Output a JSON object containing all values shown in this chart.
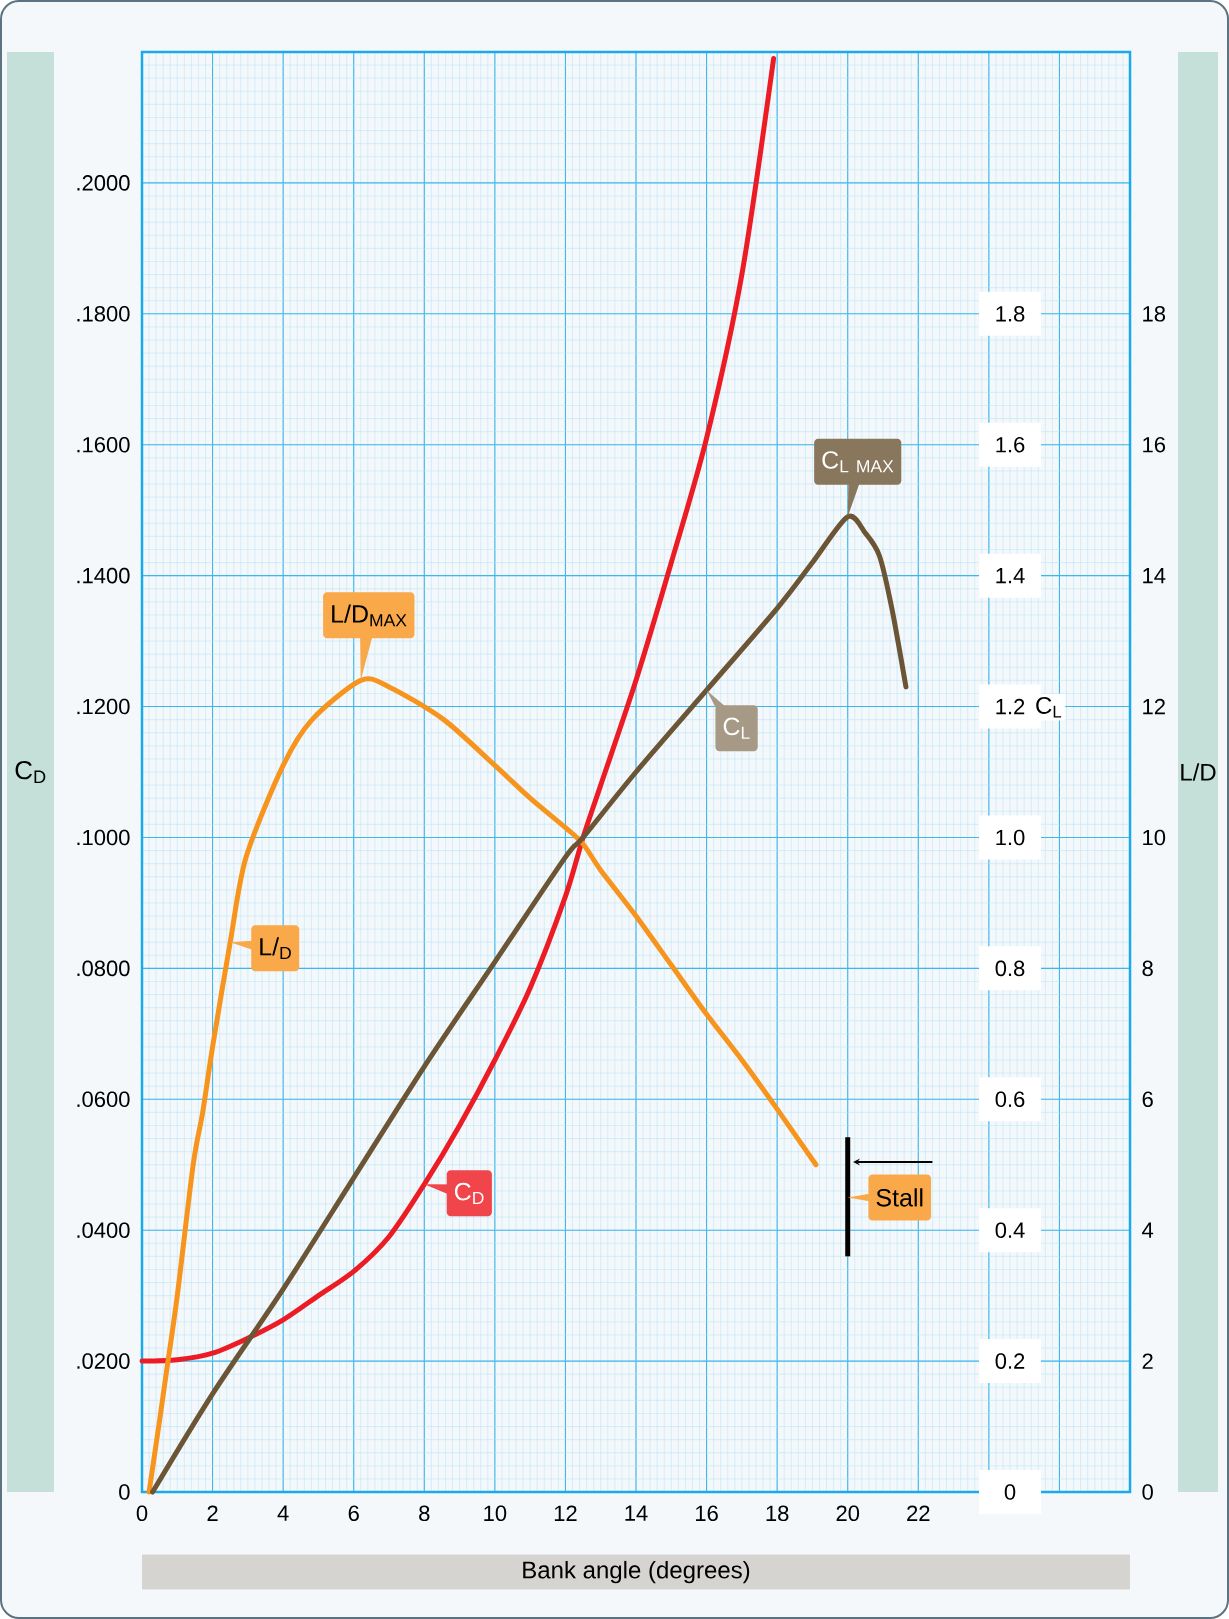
{
  "chart_data": {
    "type": "line",
    "xlabel": "Bank angle (degrees)",
    "ylabel": "C$_{D}$",
    "y2label": "L/D",
    "y3label": "C$_{L}$",
    "xlim": [
      0,
      28
    ],
    "ylim": [
      0,
      0.22
    ],
    "y2lim": [
      0,
      22
    ],
    "y3lim": [
      0,
      2.2
    ],
    "xticks": [
      0,
      2,
      4,
      6,
      8,
      10,
      12,
      14,
      16,
      18,
      20,
      22,
      {
        "value": 24,
        "label": null
      },
      {
        "value": 26,
        "label": null
      }
    ],
    "yticks": [
      0,
      {
        "value": 0.02,
        "label": ".0200"
      },
      {
        "value": 0.04,
        "label": ".0400"
      },
      {
        "value": 0.06,
        "label": ".0600"
      },
      {
        "value": 0.08,
        "label": ".0800"
      },
      {
        "value": 0.1,
        "label": ".1000"
      },
      {
        "value": 0.12,
        "label": ".1200"
      },
      {
        "value": 0.14,
        "label": ".1400"
      },
      {
        "value": 0.16,
        "label": ".1600"
      },
      {
        "value": 0.18,
        "label": ".1800"
      },
      {
        "value": 0.2,
        "label": ".2000"
      }
    ],
    "y2ticks": [
      0,
      2,
      4,
      6,
      8,
      10,
      12,
      14,
      16,
      18
    ],
    "y3ticks": [
      0,
      0.2,
      0.4,
      0.6,
      0.8,
      {
        "value": 1,
        "label": "1.0"
      },
      1.2,
      1.4,
      1.6,
      1.8
    ],
    "grid": true,
    "series": [
      {
        "name": "C$_{D}$",
        "color": "#ec1c24",
        "x": [
          0,
          1,
          2,
          3,
          4,
          5,
          6,
          7,
          8,
          9,
          10,
          11,
          12,
          12.5,
          13,
          14,
          15,
          16,
          17,
          17.9
        ],
        "values": [
          0.02,
          0.0202,
          0.0212,
          0.0235,
          0.0263,
          0.03,
          0.0337,
          0.039,
          0.047,
          0.056,
          0.066,
          0.077,
          0.091,
          0.1,
          0.108,
          0.124,
          0.142,
          0.161,
          0.186,
          0.219
        ]
      },
      {
        "name": "C$_{L}$",
        "color": "#6b5535",
        "axis": "y3",
        "x": [
          0.3,
          2,
          4,
          6,
          8,
          10,
          12,
          12.5,
          14,
          16,
          18,
          19,
          20,
          20.5,
          20.9,
          21.25,
          21.65
        ],
        "values": [
          0,
          0.15,
          0.31,
          0.48,
          0.65,
          0.81,
          0.97,
          1.0,
          1.1,
          1.225,
          1.35,
          1.42,
          1.49,
          1.465,
          1.43,
          1.35,
          1.23
        ]
      },
      {
        "name": "L/$_{D}$",
        "color": "#f7941d",
        "axis": "y2",
        "x": [
          0.2,
          0.5,
          0.71,
          1,
          1.45,
          1.72,
          2,
          2.5,
          2.95,
          4,
          4.82,
          6.2,
          7,
          8.55,
          10,
          11,
          12,
          12.5,
          13,
          14,
          15,
          16,
          17,
          18,
          19.1
        ],
        "values": [
          0,
          1.1,
          1.9,
          3.0,
          5.0,
          5.8,
          6.8,
          8.4,
          9.7,
          11.1,
          11.8,
          12.4,
          12.3,
          11.8,
          11.1,
          10.6,
          10.15,
          9.9,
          9.5,
          8.8,
          8.05,
          7.3,
          6.6,
          5.85,
          5.0
        ]
      }
    ],
    "annotations": [
      "\\mathrm{C}_{\\mathrm{L\\ MAX}}",
      "L/D$_{MAX}$",
      "Stall"
    ]
  }
}
